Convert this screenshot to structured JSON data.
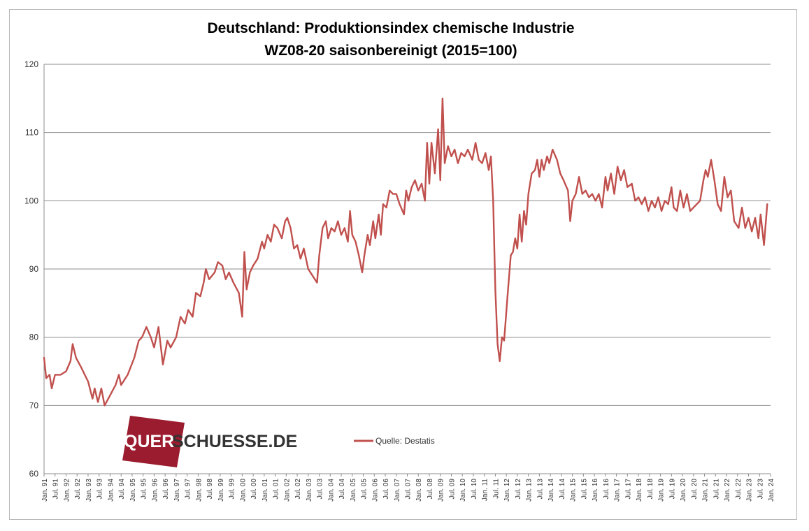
{
  "chart_data": {
    "type": "line",
    "title": "Deutschland: Produktionsindex chemische Industrie",
    "subtitle": "WZ08-20 saisonbereinigt (2015=100)",
    "ylim": [
      60,
      120
    ],
    "yticks": [
      "60",
      "70",
      "80",
      "90",
      "100",
      "110",
      "120"
    ],
    "xlim": [
      1991.0,
      2024.0
    ],
    "xtick_labels": [
      "Jan. 91",
      "Jul. 91",
      "Jan. 92",
      "Jul. 92",
      "Jan. 93",
      "Jul. 93",
      "Jan. 94",
      "Jul. 94",
      "Jan. 95",
      "Jul. 95",
      "Jan. 96",
      "Jul. 96",
      "Jan. 97",
      "Jul. 97",
      "Jan. 98",
      "Jul. 98",
      "Jan. 99",
      "Jul. 99",
      "Jan. 00",
      "Jul. 00",
      "Jan. 01",
      "Jul. 01",
      "Jan. 02",
      "Jul. 02",
      "Jan. 03",
      "Jul. 03",
      "Jan. 04",
      "Jul. 04",
      "Jan. 05",
      "Jul. 05",
      "Jan. 06",
      "Jul. 06",
      "Jan. 07",
      "Jul. 07",
      "Jan. 08",
      "Jul. 08",
      "Jan. 09",
      "Jul. 09",
      "Jan. 10",
      "Jul. 10",
      "Jan. 11",
      "Jul. 11",
      "Jan. 12",
      "Jul. 12",
      "Jan. 13",
      "Jul. 13",
      "Jan. 14",
      "Jul. 14",
      "Jan. 15",
      "Jul. 15",
      "Jan. 16",
      "Jul. 16",
      "Jan. 17",
      "Jul. 17",
      "Jan. 18",
      "Jul. 18",
      "Jan. 19",
      "Jul. 19",
      "Jan. 20",
      "Jul. 20",
      "Jan. 21",
      "Jul. 21",
      "Jan. 22",
      "Jul. 22",
      "Jan. 23",
      "Jul. 23",
      "Jan. 24"
    ],
    "grid": "horizontal",
    "legend_position": "bottom-center",
    "series": [
      {
        "name": "Quelle: Destatis",
        "color": "#c0504d",
        "points": [
          [
            1991.0,
            77.0
          ],
          [
            1991.1,
            74.0
          ],
          [
            1991.25,
            74.5
          ],
          [
            1991.35,
            72.5
          ],
          [
            1991.5,
            74.5
          ],
          [
            1991.75,
            74.5
          ],
          [
            1992.0,
            75.0
          ],
          [
            1992.2,
            76.5
          ],
          [
            1992.3,
            79.0
          ],
          [
            1992.45,
            77.0
          ],
          [
            1992.7,
            75.5
          ],
          [
            1993.0,
            73.5
          ],
          [
            1993.2,
            71.0
          ],
          [
            1993.3,
            72.5
          ],
          [
            1993.45,
            70.5
          ],
          [
            1993.6,
            72.5
          ],
          [
            1993.75,
            70.0
          ],
          [
            1994.0,
            71.5
          ],
          [
            1994.25,
            73.0
          ],
          [
            1994.4,
            74.5
          ],
          [
            1994.5,
            73.0
          ],
          [
            1994.8,
            74.5
          ],
          [
            1995.1,
            77.0
          ],
          [
            1995.3,
            79.5
          ],
          [
            1995.45,
            80.0
          ],
          [
            1995.65,
            81.5
          ],
          [
            1995.85,
            80.0
          ],
          [
            1996.0,
            78.5
          ],
          [
            1996.2,
            81.5
          ],
          [
            1996.4,
            76.0
          ],
          [
            1996.6,
            79.5
          ],
          [
            1996.75,
            78.5
          ],
          [
            1997.0,
            80.0
          ],
          [
            1997.2,
            83.0
          ],
          [
            1997.4,
            82.0
          ],
          [
            1997.55,
            84.0
          ],
          [
            1997.75,
            83.0
          ],
          [
            1997.9,
            86.5
          ],
          [
            1998.1,
            86.0
          ],
          [
            1998.25,
            88.0
          ],
          [
            1998.35,
            90.0
          ],
          [
            1998.5,
            88.5
          ],
          [
            1998.75,
            89.5
          ],
          [
            1998.9,
            91.0
          ],
          [
            1999.1,
            90.5
          ],
          [
            1999.25,
            88.5
          ],
          [
            1999.4,
            89.5
          ],
          [
            1999.6,
            88.0
          ],
          [
            1999.85,
            86.5
          ],
          [
            2000.0,
            83.0
          ],
          [
            2000.1,
            92.5
          ],
          [
            2000.2,
            87.0
          ],
          [
            2000.35,
            89.5
          ],
          [
            2000.5,
            90.5
          ],
          [
            2000.7,
            91.5
          ],
          [
            2000.9,
            94.0
          ],
          [
            2001.0,
            93.0
          ],
          [
            2001.15,
            95.0
          ],
          [
            2001.3,
            94.0
          ],
          [
            2001.45,
            96.5
          ],
          [
            2001.6,
            96.0
          ],
          [
            2001.8,
            94.5
          ],
          [
            2001.95,
            97.0
          ],
          [
            2002.05,
            97.5
          ],
          [
            2002.2,
            96.0
          ],
          [
            2002.35,
            93.0
          ],
          [
            2002.5,
            93.5
          ],
          [
            2002.65,
            91.5
          ],
          [
            2002.8,
            93.0
          ],
          [
            2003.0,
            90.0
          ],
          [
            2003.2,
            89.0
          ],
          [
            2003.4,
            88.0
          ],
          [
            2003.5,
            92.0
          ],
          [
            2003.65,
            96.0
          ],
          [
            2003.8,
            97.0
          ],
          [
            2003.9,
            94.5
          ],
          [
            2004.05,
            96.0
          ],
          [
            2004.2,
            95.5
          ],
          [
            2004.35,
            97.0
          ],
          [
            2004.5,
            95.0
          ],
          [
            2004.65,
            96.0
          ],
          [
            2004.8,
            94.0
          ],
          [
            2004.9,
            98.5
          ],
          [
            2005.0,
            95.0
          ],
          [
            2005.15,
            94.0
          ],
          [
            2005.3,
            92.0
          ],
          [
            2005.45,
            89.5
          ],
          [
            2005.55,
            92.0
          ],
          [
            2005.7,
            95.0
          ],
          [
            2005.8,
            93.5
          ],
          [
            2005.95,
            97.0
          ],
          [
            2006.05,
            94.5
          ],
          [
            2006.2,
            98.0
          ],
          [
            2006.3,
            95.0
          ],
          [
            2006.4,
            99.5
          ],
          [
            2006.55,
            99.0
          ],
          [
            2006.7,
            101.5
          ],
          [
            2006.85,
            101.0
          ],
          [
            2007.0,
            101.0
          ],
          [
            2007.15,
            99.5
          ],
          [
            2007.35,
            98.0
          ],
          [
            2007.45,
            101.5
          ],
          [
            2007.55,
            100.0
          ],
          [
            2007.7,
            102.0
          ],
          [
            2007.85,
            103.0
          ],
          [
            2008.0,
            101.5
          ],
          [
            2008.15,
            102.5
          ],
          [
            2008.3,
            100.0
          ],
          [
            2008.4,
            108.5
          ],
          [
            2008.5,
            102.5
          ],
          [
            2008.6,
            108.5
          ],
          [
            2008.75,
            104.0
          ],
          [
            2008.9,
            110.5
          ],
          [
            2009.0,
            103.0
          ],
          [
            2009.1,
            115.0
          ],
          [
            2009.2,
            105.5
          ],
          [
            2009.35,
            108.0
          ],
          [
            2009.5,
            106.5
          ],
          [
            2009.65,
            107.5
          ],
          [
            2009.8,
            105.5
          ],
          [
            2009.95,
            107.0
          ],
          [
            2010.1,
            106.5
          ],
          [
            2010.25,
            107.5
          ],
          [
            2010.45,
            106.0
          ],
          [
            2010.6,
            108.5
          ],
          [
            2010.75,
            106.0
          ],
          [
            2010.9,
            105.5
          ],
          [
            2011.05,
            107.0
          ],
          [
            2011.2,
            104.5
          ],
          [
            2011.3,
            106.5
          ],
          [
            2011.4,
            100.0
          ],
          [
            2011.5,
            87.0
          ],
          [
            2011.6,
            79.0
          ],
          [
            2011.7,
            76.5
          ],
          [
            2011.8,
            80.0
          ],
          [
            2011.9,
            79.5
          ],
          [
            2012.05,
            86.0
          ],
          [
            2012.2,
            92.0
          ],
          [
            2012.3,
            92.5
          ],
          [
            2012.4,
            94.5
          ],
          [
            2012.5,
            93.0
          ],
          [
            2012.6,
            98.0
          ],
          [
            2012.7,
            94.0
          ],
          [
            2012.8,
            98.5
          ],
          [
            2012.9,
            96.5
          ],
          [
            2013.0,
            101.0
          ],
          [
            2013.15,
            104.0
          ],
          [
            2013.3,
            104.5
          ],
          [
            2013.4,
            106.0
          ],
          [
            2013.5,
            103.5
          ],
          [
            2013.6,
            106.0
          ],
          [
            2013.7,
            104.5
          ],
          [
            2013.85,
            106.5
          ],
          [
            2013.95,
            105.5
          ],
          [
            2014.1,
            107.5
          ],
          [
            2014.3,
            106.0
          ],
          [
            2014.45,
            104.0
          ],
          [
            2014.6,
            103.0
          ],
          [
            2014.8,
            101.5
          ],
          [
            2014.9,
            97.0
          ],
          [
            2015.0,
            100.0
          ],
          [
            2015.15,
            101.0
          ],
          [
            2015.3,
            103.5
          ],
          [
            2015.45,
            101.0
          ],
          [
            2015.6,
            101.5
          ],
          [
            2015.75,
            100.5
          ],
          [
            2015.9,
            101.0
          ],
          [
            2016.05,
            100.0
          ],
          [
            2016.2,
            101.0
          ],
          [
            2016.35,
            99.0
          ],
          [
            2016.5,
            103.5
          ],
          [
            2016.6,
            101.5
          ],
          [
            2016.75,
            104.0
          ],
          [
            2016.9,
            101.0
          ],
          [
            2017.05,
            105.0
          ],
          [
            2017.2,
            103.0
          ],
          [
            2017.35,
            104.5
          ],
          [
            2017.5,
            102.0
          ],
          [
            2017.7,
            102.5
          ],
          [
            2017.85,
            100.0
          ],
          [
            2018.0,
            100.5
          ],
          [
            2018.15,
            99.5
          ],
          [
            2018.3,
            100.5
          ],
          [
            2018.45,
            98.5
          ],
          [
            2018.6,
            100.0
          ],
          [
            2018.75,
            99.0
          ],
          [
            2018.9,
            100.5
          ],
          [
            2019.05,
            98.5
          ],
          [
            2019.2,
            100.0
          ],
          [
            2019.35,
            99.5
          ],
          [
            2019.5,
            102.0
          ],
          [
            2019.6,
            99.0
          ],
          [
            2019.75,
            98.5
          ],
          [
            2019.9,
            101.5
          ],
          [
            2020.05,
            99.0
          ],
          [
            2020.2,
            101.0
          ],
          [
            2020.35,
            98.5
          ],
          [
            2020.5,
            99.0
          ],
          [
            2020.65,
            99.5
          ],
          [
            2020.8,
            100.0
          ],
          [
            2020.95,
            103.0
          ],
          [
            2021.05,
            104.5
          ],
          [
            2021.15,
            103.5
          ],
          [
            2021.3,
            106.0
          ],
          [
            2021.45,
            103.0
          ],
          [
            2021.6,
            99.5
          ],
          [
            2021.75,
            98.5
          ],
          [
            2021.9,
            103.5
          ],
          [
            2022.05,
            100.5
          ],
          [
            2022.2,
            101.5
          ],
          [
            2022.35,
            97.0
          ],
          [
            2022.55,
            96.0
          ],
          [
            2022.7,
            99.0
          ],
          [
            2022.85,
            96.0
          ],
          [
            2023.0,
            97.5
          ],
          [
            2023.15,
            95.5
          ],
          [
            2023.3,
            97.5
          ],
          [
            2023.45,
            94.5
          ],
          [
            2023.55,
            98.0
          ],
          [
            2023.7,
            93.5
          ],
          [
            2023.85,
            99.5
          ]
        ]
      }
    ]
  },
  "legend": {
    "label": "Quelle: Destatis"
  },
  "logo": {
    "text_on_block": "QUER",
    "text_rest": "SCHUESSE.DE",
    "block_color": "#9b1c2e",
    "text_color": "#333333"
  }
}
